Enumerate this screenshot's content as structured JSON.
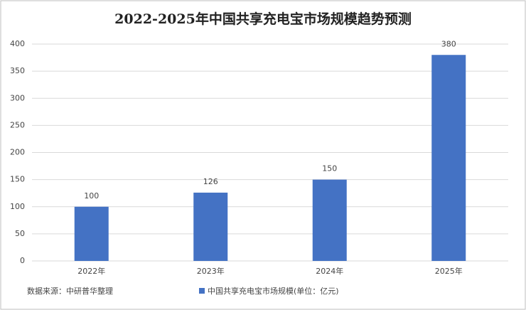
{
  "chart_data": {
    "type": "bar",
    "title": "2022-2025年中国共享充电宝市场规模趋势预测",
    "categories": [
      "2022年",
      "2023年",
      "2024年",
      "2025年"
    ],
    "series": [
      {
        "name": "中国共享充电宝市场规模(单位：亿元)",
        "color": "#4472c4",
        "values": [
          100,
          126,
          150,
          380
        ]
      }
    ],
    "ylim": [
      0,
      400
    ],
    "yticks": [
      0,
      50,
      100,
      150,
      200,
      250,
      300,
      350,
      400
    ],
    "grid": true,
    "source": "数据来源：中研普华整理",
    "legend": "bottom"
  }
}
